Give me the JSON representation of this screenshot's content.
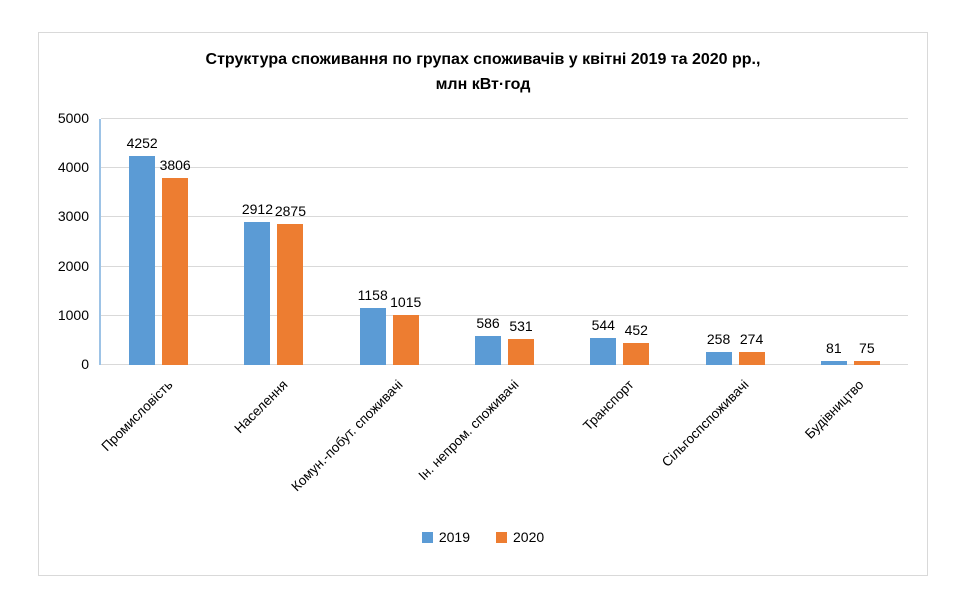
{
  "chart": {
    "title_lines": [
      "Структура споживання по групах споживачів у квітні 2019 та 2020 рр.,",
      "млн кВт·год"
    ]
  },
  "chart_data": {
    "type": "bar",
    "title": "Структура споживання по групах споживачів у квітні 2019 та 2020 рр., млн кВт·год",
    "categories": [
      "Промисловість",
      "Населення",
      "Комун.-побут. споживачі",
      "Ін. непром. споживачі",
      "Транспорт",
      "Сільгоспспоживачі",
      "Будівництво"
    ],
    "series": [
      {
        "name": "2019",
        "color": "#5B9BD5",
        "values": [
          4252,
          2912,
          1158,
          586,
          544,
          258,
          81
        ]
      },
      {
        "name": "2020",
        "color": "#ED7D31",
        "values": [
          3806,
          2875,
          1015,
          531,
          452,
          274,
          75
        ]
      }
    ],
    "xlabel": "",
    "ylabel": "",
    "ylim": [
      0,
      5000
    ],
    "yticks": [
      0,
      1000,
      2000,
      3000,
      4000,
      5000
    ],
    "grid": true,
    "data_labels": true,
    "legend_position": "bottom",
    "colors": {
      "gridline": "#D9D9D9",
      "y_axis_line": "#9DC3E6",
      "frame_border": "#D9D9D9",
      "text": "#000000"
    }
  }
}
